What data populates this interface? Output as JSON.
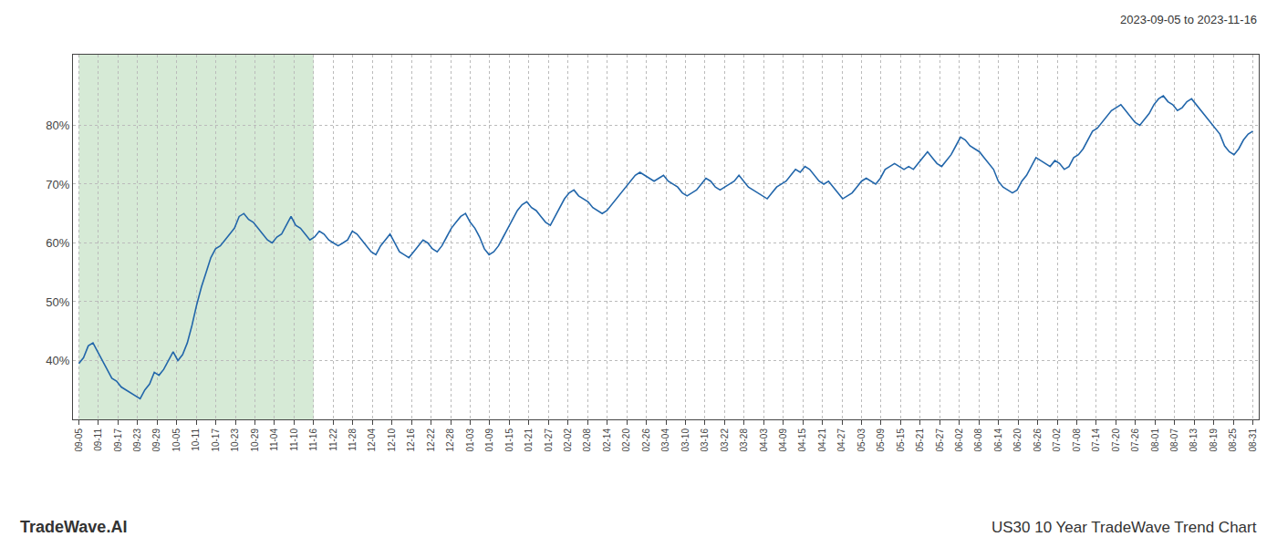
{
  "chart_data": {
    "type": "line",
    "annotations": [
      "2023-09-05 to 2023-11-16",
      "TradeWave.AI",
      "US30 10 Year TradeWave Trend Chart"
    ],
    "color": "#2266aa",
    "background_color": "#ffffff",
    "shaded_region": {
      "start": "09-05",
      "end": "11-16",
      "color": "#d6ead6"
    },
    "grid": true,
    "ylim": [
      30,
      92
    ],
    "yticks": [
      {
        "value": 40,
        "label": "40%"
      },
      {
        "value": 50,
        "label": "50%"
      },
      {
        "value": 60,
        "label": "60%"
      },
      {
        "value": 70,
        "label": "70%"
      },
      {
        "value": 80,
        "label": "80%"
      }
    ],
    "xlim": [
      -0.3,
      60.3
    ],
    "xticks": [
      {
        "value": 0,
        "label": "09-05"
      },
      {
        "value": 1,
        "label": "09-11"
      },
      {
        "value": 2,
        "label": "09-17"
      },
      {
        "value": 3,
        "label": "09-23"
      },
      {
        "value": 4,
        "label": "09-29"
      },
      {
        "value": 5,
        "label": "10-05"
      },
      {
        "value": 6,
        "label": "10-11"
      },
      {
        "value": 7,
        "label": "10-17"
      },
      {
        "value": 8,
        "label": "10-23"
      },
      {
        "value": 9,
        "label": "10-29"
      },
      {
        "value": 10,
        "label": "11-04"
      },
      {
        "value": 11,
        "label": "11-10"
      },
      {
        "value": 12,
        "label": "11-16"
      },
      {
        "value": 13,
        "label": "11-22"
      },
      {
        "value": 14,
        "label": "11-28"
      },
      {
        "value": 15,
        "label": "12-04"
      },
      {
        "value": 16,
        "label": "12-10"
      },
      {
        "value": 17,
        "label": "12-16"
      },
      {
        "value": 18,
        "label": "12-22"
      },
      {
        "value": 19,
        "label": "12-28"
      },
      {
        "value": 20,
        "label": "01-03"
      },
      {
        "value": 21,
        "label": "01-09"
      },
      {
        "value": 22,
        "label": "01-15"
      },
      {
        "value": 23,
        "label": "01-21"
      },
      {
        "value": 24,
        "label": "01-27"
      },
      {
        "value": 25,
        "label": "02-02"
      },
      {
        "value": 26,
        "label": "02-08"
      },
      {
        "value": 27,
        "label": "02-14"
      },
      {
        "value": 28,
        "label": "02-20"
      },
      {
        "value": 29,
        "label": "02-26"
      },
      {
        "value": 30,
        "label": "03-04"
      },
      {
        "value": 31,
        "label": "03-10"
      },
      {
        "value": 32,
        "label": "03-16"
      },
      {
        "value": 33,
        "label": "03-22"
      },
      {
        "value": 34,
        "label": "03-28"
      },
      {
        "value": 35,
        "label": "04-03"
      },
      {
        "value": 36,
        "label": "04-09"
      },
      {
        "value": 37,
        "label": "04-15"
      },
      {
        "value": 38,
        "label": "04-21"
      },
      {
        "value": 39,
        "label": "04-27"
      },
      {
        "value": 40,
        "label": "05-03"
      },
      {
        "value": 41,
        "label": "05-09"
      },
      {
        "value": 42,
        "label": "05-15"
      },
      {
        "value": 43,
        "label": "05-21"
      },
      {
        "value": 44,
        "label": "05-27"
      },
      {
        "value": 45,
        "label": "06-02"
      },
      {
        "value": 46,
        "label": "06-08"
      },
      {
        "value": 47,
        "label": "06-14"
      },
      {
        "value": 48,
        "label": "06-20"
      },
      {
        "value": 49,
        "label": "06-26"
      },
      {
        "value": 50,
        "label": "07-02"
      },
      {
        "value": 51,
        "label": "07-08"
      },
      {
        "value": 52,
        "label": "07-14"
      },
      {
        "value": 53,
        "label": "07-20"
      },
      {
        "value": 54,
        "label": "07-26"
      },
      {
        "value": 55,
        "label": "08-01"
      },
      {
        "value": 56,
        "label": "08-07"
      },
      {
        "value": 57,
        "label": "08-13"
      },
      {
        "value": 58,
        "label": "08-19"
      },
      {
        "value": 59,
        "label": "08-25"
      },
      {
        "value": 60,
        "label": "08-31"
      }
    ],
    "values": [
      39.5,
      40.5,
      42.5,
      43.0,
      41.5,
      40.0,
      38.5,
      37.0,
      36.5,
      35.5,
      35.0,
      34.5,
      34.0,
      33.5,
      35.0,
      36.0,
      38.0,
      37.5,
      38.5,
      40.0,
      41.5,
      40.0,
      41.0,
      43.0,
      46.0,
      49.5,
      52.5,
      55.0,
      57.5,
      59.0,
      59.5,
      60.5,
      61.5,
      62.5,
      64.5,
      65.0,
      64.0,
      63.5,
      62.5,
      61.5,
      60.5,
      60.0,
      61.0,
      61.5,
      63.0,
      64.5,
      63.0,
      62.5,
      61.5,
      60.5,
      61.0,
      62.0,
      61.5,
      60.5,
      60.0,
      59.5,
      60.0,
      60.5,
      62.0,
      61.5,
      60.5,
      59.5,
      58.5,
      58.0,
      59.5,
      60.5,
      61.5,
      60.0,
      58.5,
      58.0,
      57.5,
      58.5,
      59.5,
      60.5,
      60.0,
      59.0,
      58.5,
      59.5,
      61.0,
      62.5,
      63.5,
      64.5,
      65.0,
      63.5,
      62.5,
      61.0,
      59.0,
      58.0,
      58.5,
      59.5,
      61.0,
      62.5,
      64.0,
      65.5,
      66.5,
      67.0,
      66.0,
      65.5,
      64.5,
      63.5,
      63.0,
      64.5,
      66.0,
      67.5,
      68.5,
      69.0,
      68.0,
      67.5,
      67.0,
      66.0,
      65.5,
      65.0,
      65.5,
      66.5,
      67.5,
      68.5,
      69.5,
      70.5,
      71.5,
      72.0,
      71.5,
      71.0,
      70.5,
      71.0,
      71.5,
      70.5,
      70.0,
      69.5,
      68.5,
      68.0,
      68.5,
      69.0,
      70.0,
      71.0,
      70.5,
      69.5,
      69.0,
      69.5,
      70.0,
      70.5,
      71.5,
      70.5,
      69.5,
      69.0,
      68.5,
      68.0,
      67.5,
      68.5,
      69.5,
      70.0,
      70.5,
      71.5,
      72.5,
      72.0,
      73.0,
      72.5,
      71.5,
      70.5,
      70.0,
      70.5,
      69.5,
      68.5,
      67.5,
      68.0,
      68.5,
      69.5,
      70.5,
      71.0,
      70.5,
      70.0,
      71.0,
      72.5,
      73.0,
      73.5,
      73.0,
      72.5,
      73.0,
      72.5,
      73.5,
      74.5,
      75.5,
      74.5,
      73.5,
      73.0,
      74.0,
      75.0,
      76.5,
      78.0,
      77.5,
      76.5,
      76.0,
      75.5,
      74.5,
      73.5,
      72.5,
      70.5,
      69.5,
      69.0,
      68.5,
      69.0,
      70.5,
      71.5,
      73.0,
      74.5,
      74.0,
      73.5,
      73.0,
      74.0,
      73.5,
      72.5,
      73.0,
      74.5,
      75.0,
      76.0,
      77.5,
      79.0,
      79.5,
      80.5,
      81.5,
      82.5,
      83.0,
      83.5,
      82.5,
      81.5,
      80.5,
      80.0,
      81.0,
      82.0,
      83.5,
      84.5,
      85.0,
      84.0,
      83.5,
      82.5,
      83.0,
      84.0,
      84.5,
      83.5,
      82.5,
      81.5,
      80.5,
      79.5,
      78.5,
      76.5,
      75.5,
      75.0,
      76.0,
      77.5,
      78.5,
      79.0
    ]
  }
}
